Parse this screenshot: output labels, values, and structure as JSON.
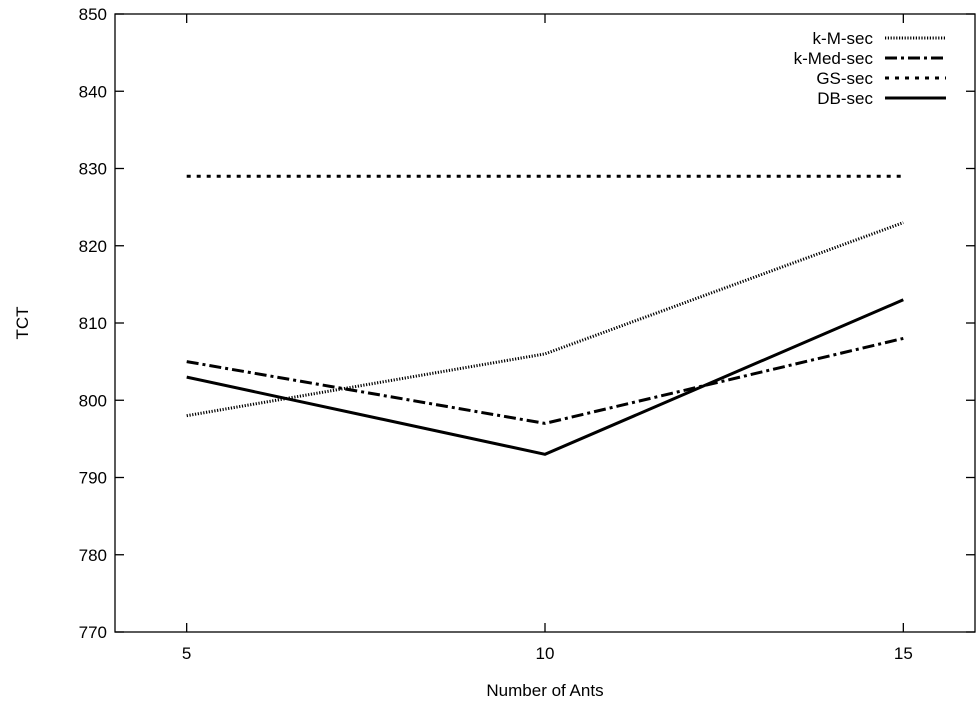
{
  "chart_data": {
    "type": "line",
    "title": "",
    "xlabel": "Number of Ants",
    "ylabel": "TCT",
    "x": [
      5,
      10,
      15
    ],
    "xlim": [
      4,
      16
    ],
    "ylim": [
      770,
      850
    ],
    "x_ticks": [
      5,
      10,
      15
    ],
    "y_ticks": [
      770,
      780,
      790,
      800,
      810,
      820,
      830,
      840,
      850
    ],
    "grid": false,
    "legend_position": "top-right",
    "series": [
      {
        "name": "k-M-sec",
        "values": [
          798,
          806,
          823
        ],
        "style": "fine-dotted",
        "color": "#000000"
      },
      {
        "name": "k-Med-sec",
        "values": [
          805,
          797,
          808
        ],
        "style": "dash-dot",
        "color": "#000000"
      },
      {
        "name": "GS-sec",
        "values": [
          829,
          829,
          829
        ],
        "style": "dotted",
        "color": "#000000"
      },
      {
        "name": "DB-sec",
        "values": [
          803,
          793,
          813
        ],
        "style": "solid",
        "color": "#000000"
      }
    ]
  }
}
